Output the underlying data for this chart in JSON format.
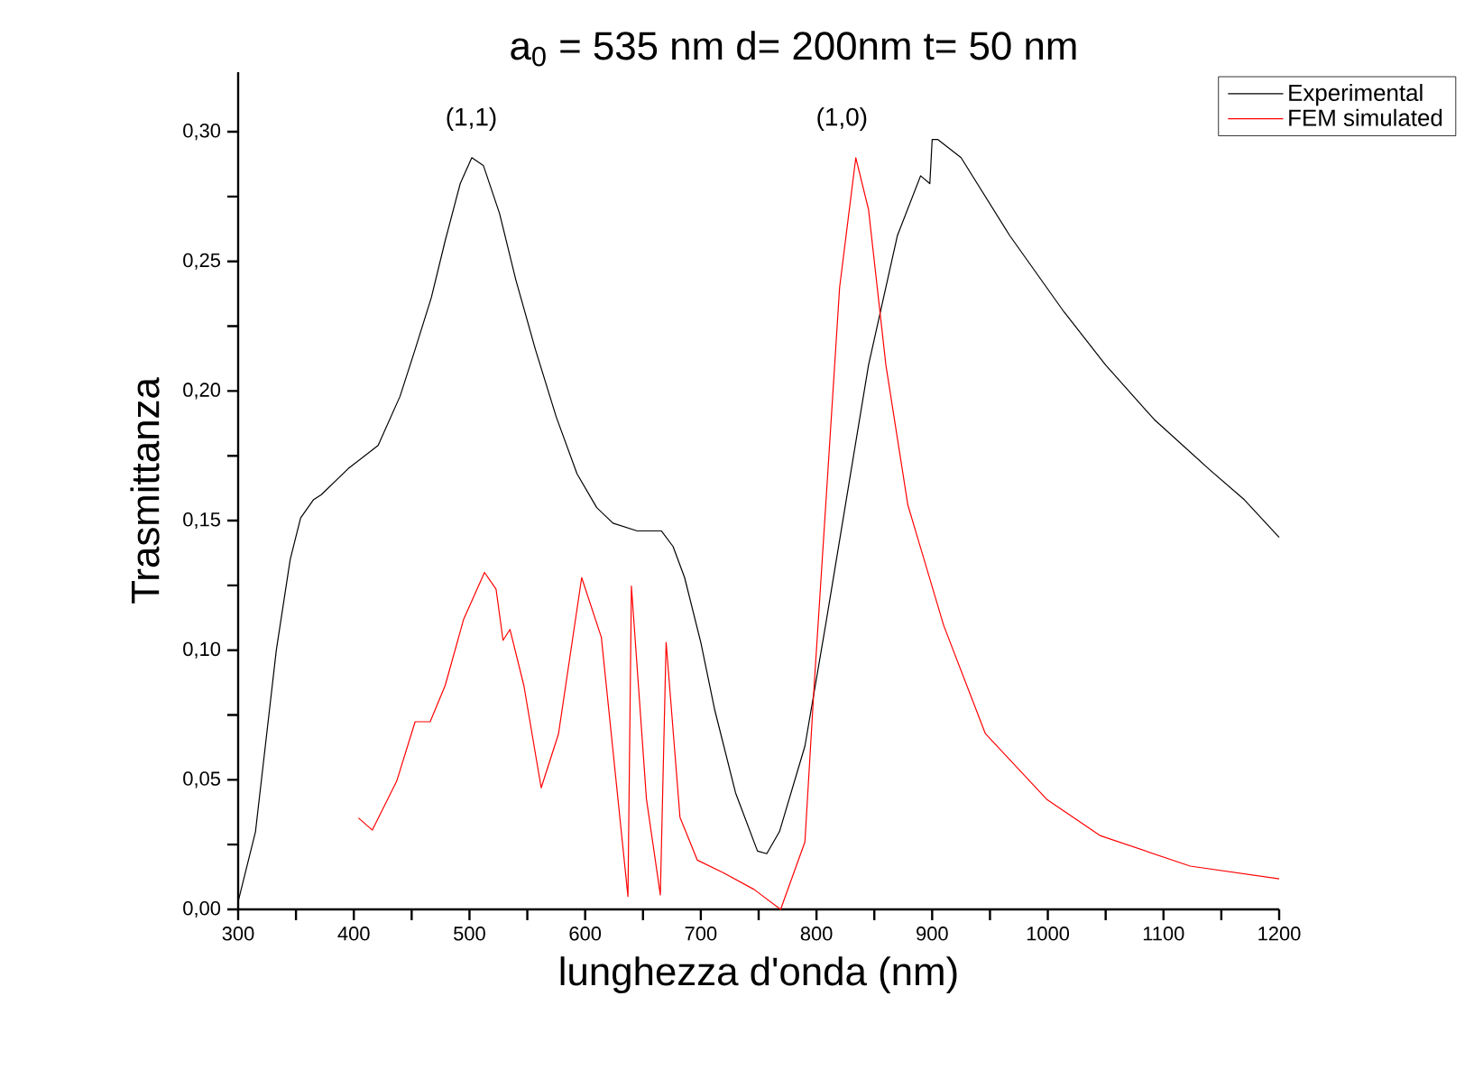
{
  "chart_data": {
    "type": "line",
    "title": "a$_{0}$ = 535 nm d= 200nm t= 50 nm",
    "xlabel": "lunghezza d'onda (nm)",
    "ylabel": "Trasmittanza",
    "annotations": [
      "(1,1)",
      "(1,0)"
    ],
    "xlim": [
      300,
      1200
    ],
    "ylim": [
      0,
      0.323
    ],
    "xticks": [
      300,
      {
        "value": 350,
        "label": null
      },
      400,
      {
        "value": 450,
        "label": null
      },
      500,
      {
        "value": 550,
        "label": null
      },
      600,
      {
        "value": 650,
        "label": null
      },
      700,
      {
        "value": 750,
        "label": null
      },
      800,
      {
        "value": 850,
        "label": null
      },
      900,
      {
        "value": 950,
        "label": null
      },
      1000,
      {
        "value": 1050,
        "label": null
      },
      1100,
      {
        "value": 1150,
        "label": null
      },
      1200
    ],
    "yticks": [
      {
        "value": 0,
        "label": "0,00"
      },
      {
        "value": 0.025,
        "label": null
      },
      {
        "value": 0.05,
        "label": "0,05"
      },
      {
        "value": 0.075,
        "label": null
      },
      {
        "value": 0.1,
        "label": "0,10"
      },
      {
        "value": 0.125,
        "label": null
      },
      {
        "value": 0.15,
        "label": "0,15"
      },
      {
        "value": 0.175,
        "label": null
      },
      {
        "value": 0.2,
        "label": "0,20"
      },
      {
        "value": 0.225,
        "label": null
      },
      {
        "value": 0.25,
        "label": "0,25"
      },
      {
        "value": 0.275,
        "label": null
      },
      {
        "value": 0.3,
        "label": "0,30"
      }
    ],
    "grid": false,
    "legend": "top right",
    "marker": "none",
    "line_style": "solid",
    "series": [
      {
        "name": "Experimental",
        "color": "#000000",
        "x": [
          300,
          315,
          333,
          345,
          354,
          365,
          372,
          395,
          421,
          440,
          453,
          467,
          479,
          492,
          502,
          512,
          526,
          540,
          557,
          575,
          593,
          610,
          624,
          645,
          666,
          676,
          686,
          700,
          712,
          730,
          749,
          757,
          768,
          790,
          808,
          825,
          845,
          870,
          890,
          898,
          900,
          905,
          925,
          967,
          1014,
          1050,
          1092,
          1139,
          1170,
          1200
        ],
        "values": [
          0.003,
          0.03,
          0.1,
          0.135,
          0.151,
          0.158,
          0.16,
          0.17,
          0.179,
          0.198,
          0.216,
          0.236,
          0.258,
          0.28,
          0.29,
          0.287,
          0.2685,
          0.243,
          0.216,
          0.19,
          0.168,
          0.155,
          0.149,
          0.146,
          0.146,
          0.14,
          0.128,
          0.103,
          0.077,
          0.045,
          0.0225,
          0.0215,
          0.03,
          0.063,
          0.11,
          0.156,
          0.21,
          0.26,
          0.283,
          0.28,
          0.297,
          0.297,
          0.29,
          0.26,
          0.2305,
          0.21,
          0.189,
          0.17,
          0.158,
          0.1435
        ]
      },
      {
        "name": "FEM simulated",
        "color": "#ff0000",
        "x": [
          404,
          416,
          437,
          453,
          466,
          479,
          495,
          513,
          523,
          529,
          535,
          547,
          562,
          577,
          597,
          614,
          637,
          640,
          653,
          665,
          670,
          682,
          697,
          720,
          746,
          769,
          790,
          798,
          808,
          820,
          834,
          845,
          860,
          879,
          910,
          946,
          999,
          1045,
          1123,
          1200
        ],
        "values": [
          0.0353,
          0.0306,
          0.0494,
          0.0724,
          0.0724,
          0.0864,
          0.112,
          0.13,
          0.1235,
          0.1038,
          0.108,
          0.0864,
          0.0469,
          0.0678,
          0.128,
          0.105,
          0.005,
          0.1247,
          0.0425,
          0.0056,
          0.103,
          0.0355,
          0.019,
          0.014,
          0.0077,
          0.0,
          0.026,
          0.0864,
          0.156,
          0.24,
          0.29,
          0.27,
          0.21,
          0.156,
          0.1095,
          0.0678,
          0.0425,
          0.0285,
          0.0167,
          0.0118
        ]
      }
    ]
  }
}
